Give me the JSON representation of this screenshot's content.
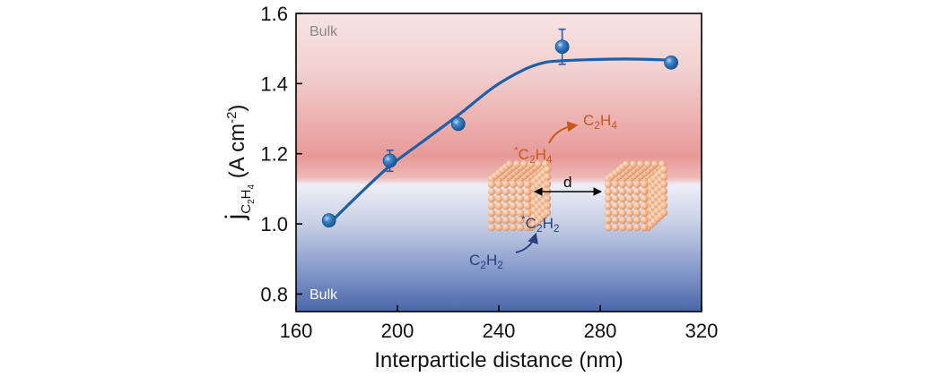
{
  "chart_data": {
    "type": "scatter",
    "xlabel": "Interparticle distance (nm)",
    "ylabel": {
      "prefix": "j",
      "subscript_parts": [
        "C",
        "2",
        "H",
        "4"
      ],
      "units_open": " (A cm",
      "units_power": "-2",
      "units_close": ")"
    },
    "xlim": [
      160,
      320
    ],
    "ylim": [
      0.75,
      1.6
    ],
    "xticks": [
      160,
      200,
      240,
      280,
      320
    ],
    "yticks": [
      0.8,
      1.0,
      1.2,
      1.4,
      1.6
    ],
    "xtick_labels": [
      "160",
      "200",
      "240",
      "280",
      "320"
    ],
    "ytick_labels": [
      "0.8",
      "1.0",
      "1.2",
      "1.4",
      "1.6"
    ],
    "points": [
      {
        "x": 173,
        "y": 1.01,
        "err": 0
      },
      {
        "x": 197,
        "y": 1.18,
        "err": 0.03
      },
      {
        "x": 224,
        "y": 1.285,
        "err": 0
      },
      {
        "x": 265,
        "y": 1.505,
        "err": 0.05
      },
      {
        "x": 308,
        "y": 1.46,
        "err": 0
      }
    ],
    "fit_curve": {
      "x": [
        173,
        185,
        197,
        210,
        224,
        238,
        250,
        258,
        265,
        275,
        290,
        308
      ],
      "y": [
        1.0,
        1.085,
        1.165,
        1.235,
        1.31,
        1.39,
        1.44,
        1.46,
        1.465,
        1.468,
        1.47,
        1.467
      ]
    },
    "band_labels": {
      "top": "Bulk",
      "bottom": "Bulk"
    },
    "background_split_y": 1.12,
    "grid": false,
    "colors": {
      "marker": "#2a6fb0",
      "fit_line": "#1e5fa8",
      "top_band": "#e79a98",
      "bottom_band": "#4a67a8",
      "orange_text": "#c8581a",
      "navy_text": "#2a3f80",
      "particle": "#f2b08a"
    },
    "inset": {
      "icon": "cube-nanoparticle",
      "distance_label": "d",
      "c2h4_ads": {
        "star": "*",
        "a": "C",
        "b": "2",
        "c": "H",
        "d": "4"
      },
      "c2h4_gas": {
        "a": "C",
        "b": "2",
        "c": "H",
        "d": "4"
      },
      "c2h2_ads": {
        "star": "*",
        "a": "C",
        "b": "2",
        "c": "H",
        "d": "2"
      },
      "c2h2_gas": {
        "a": "C",
        "b": "2",
        "c": "H",
        "d": "2"
      }
    }
  }
}
